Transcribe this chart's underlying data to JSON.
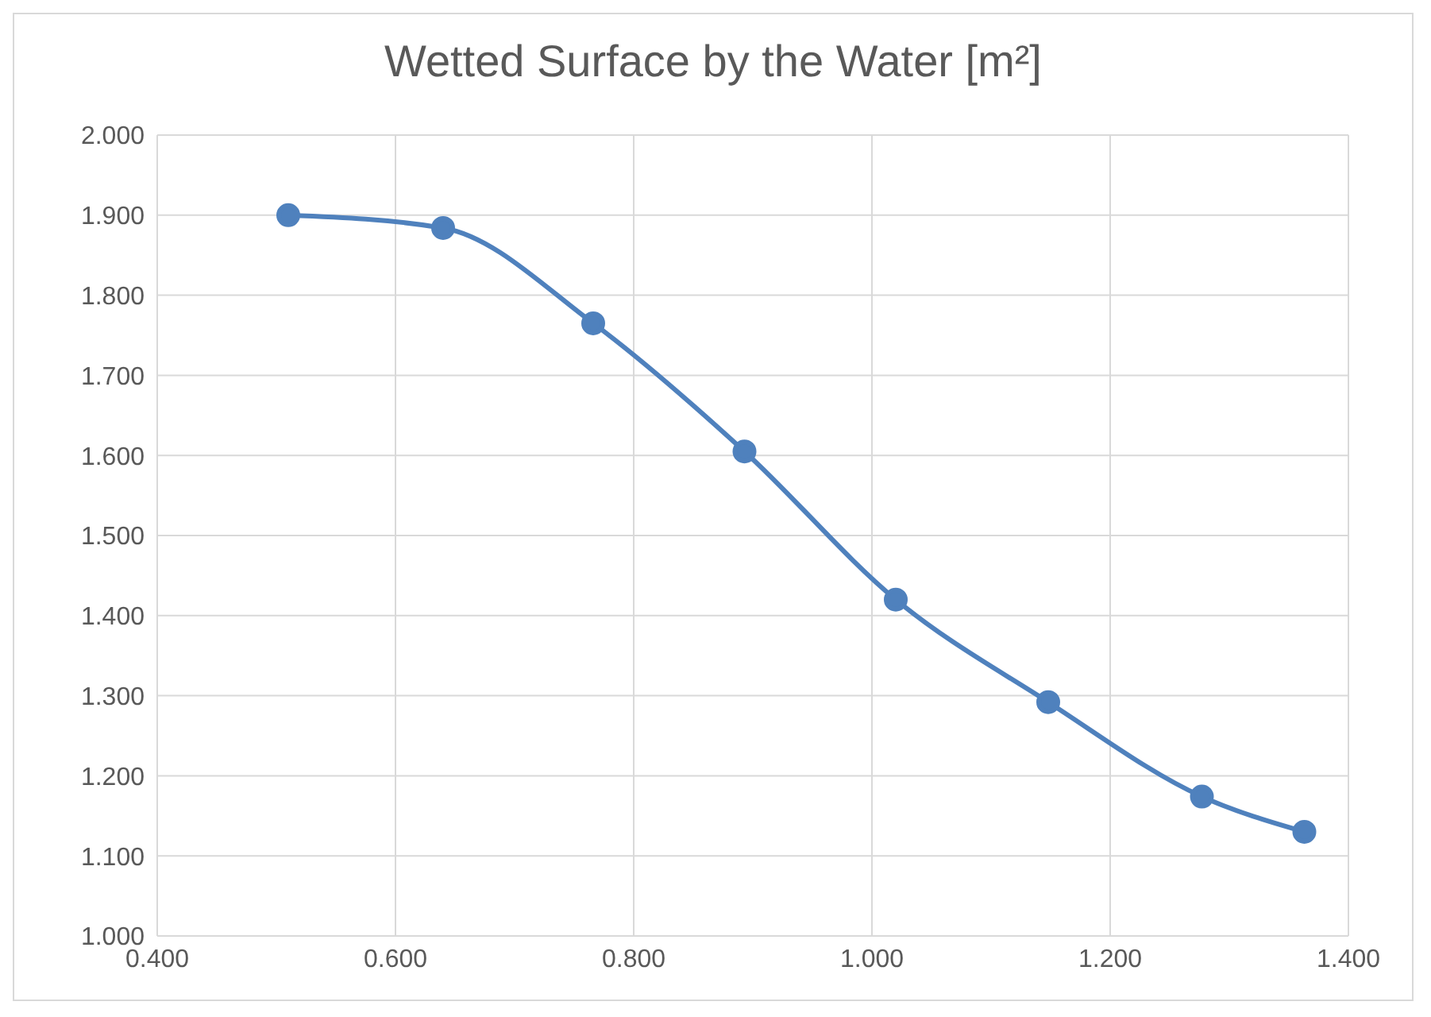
{
  "chart_data": {
    "type": "line",
    "title": "Wetted Surface by the Water [m²]",
    "x": [
      0.51,
      0.64,
      0.766,
      0.893,
      1.02,
      1.148,
      1.277,
      1.363
    ],
    "series": [
      {
        "color": "#4f81bd",
        "values": [
          1.9,
          1.884,
          1.765,
          1.605,
          1.42,
          1.292,
          1.174,
          1.13
        ]
      }
    ],
    "xlim": [
      0.4,
      1.4
    ],
    "xticks": [
      {
        "value": 0.4,
        "label": "0.400"
      },
      {
        "value": 0.6,
        "label": "0.600"
      },
      {
        "value": 0.8,
        "label": "0.800"
      },
      {
        "value": 1.0,
        "label": "1.000"
      },
      {
        "value": 1.2,
        "label": "1.200"
      },
      {
        "value": 1.4,
        "label": "1.400"
      }
    ],
    "ylim": [
      1.0,
      2.0
    ],
    "yticks": [
      {
        "value": 1.0,
        "label": "1.000"
      },
      {
        "value": 1.1,
        "label": "1.100"
      },
      {
        "value": 1.2,
        "label": "1.200"
      },
      {
        "value": 1.3,
        "label": "1.300"
      },
      {
        "value": 1.4,
        "label": "1.400"
      },
      {
        "value": 1.5,
        "label": "1.500"
      },
      {
        "value": 1.6,
        "label": "1.600"
      },
      {
        "value": 1.7,
        "label": "1.700"
      },
      {
        "value": 1.8,
        "label": "1.800"
      },
      {
        "value": 1.9,
        "label": "1.900"
      },
      {
        "value": 2.0,
        "label": "2.000"
      }
    ],
    "grid": true,
    "marker": "circle",
    "line_style": "solid"
  }
}
